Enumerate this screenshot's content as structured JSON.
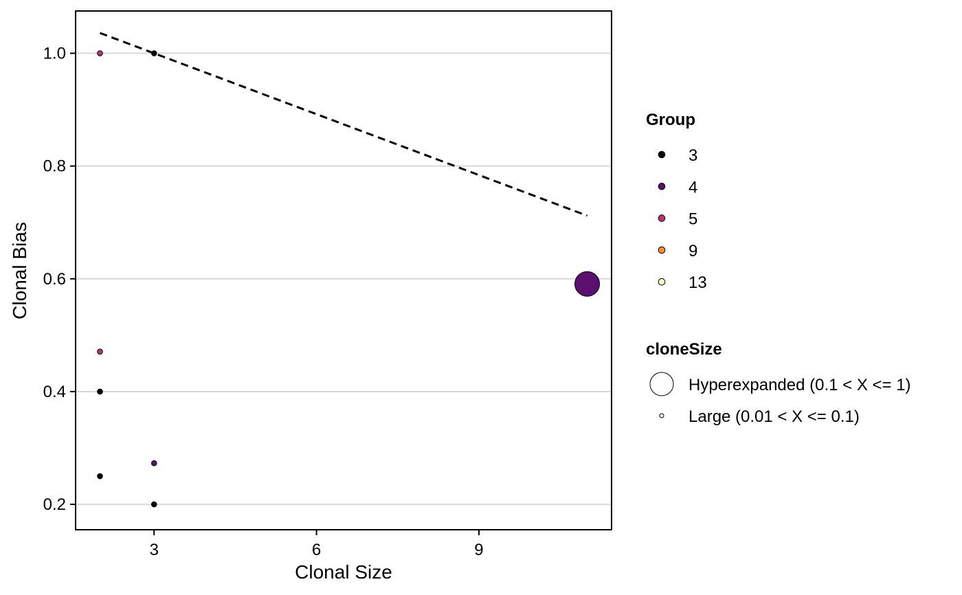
{
  "chart_data": {
    "type": "scatter",
    "title": "",
    "xlabel": "Clonal Size",
    "ylabel": "Clonal Bias",
    "xlim": [
      1.55,
      11.45
    ],
    "ylim": [
      0.155,
      1.075
    ],
    "x_ticks": [
      3,
      6,
      9
    ],
    "y_ticks": [
      0.2,
      0.4,
      0.6,
      0.8,
      1.0
    ],
    "y_tick_labels": [
      "0.2",
      "0.4",
      "0.6",
      "0.8",
      "1.0"
    ],
    "grid": "horizontal-major",
    "trend_line": {
      "style": "dashed",
      "x": [
        2,
        11
      ],
      "y": [
        1.036,
        0.712
      ]
    },
    "points": [
      {
        "x": 2,
        "y": 1.0,
        "group": "5",
        "cloneSize": "Large (0.01 < X <= 0.1)"
      },
      {
        "x": 3,
        "y": 1.0,
        "group": "3",
        "cloneSize": "Large (0.01 < X <= 0.1)"
      },
      {
        "x": 11,
        "y": 0.591,
        "group": "4",
        "cloneSize": "Hyperexpanded (0.1 < X <= 1)"
      },
      {
        "x": 2,
        "y": 0.471,
        "group": "5",
        "cloneSize": "Large (0.01 < X <= 0.1)"
      },
      {
        "x": 2,
        "y": 0.4,
        "group": "3",
        "cloneSize": "Large (0.01 < X <= 0.1)"
      },
      {
        "x": 3,
        "y": 0.273,
        "group": "4",
        "cloneSize": "Large (0.01 < X <= 0.1)"
      },
      {
        "x": 2,
        "y": 0.25,
        "group": "3",
        "cloneSize": "Large (0.01 < X <= 0.1)"
      },
      {
        "x": 3,
        "y": 0.2,
        "group": "3",
        "cloneSize": "Large (0.01 < X <= 0.1)"
      }
    ],
    "legend": {
      "placement": "right",
      "group": {
        "title": "Group",
        "items": [
          {
            "label": "3",
            "color": "#000004"
          },
          {
            "label": "4",
            "color": "#51127C"
          },
          {
            "label": "5",
            "color": "#B63679"
          },
          {
            "label": "9",
            "color": "#FB8861"
          },
          {
            "label": "13",
            "color": "#FCFDBF"
          }
        ]
      },
      "cloneSize": {
        "title": "cloneSize",
        "items": [
          {
            "label": "Hyperexpanded (0.1 < X <= 1)",
            "size": "large"
          },
          {
            "label": "Large (0.01 < X <= 0.1)",
            "size": "small"
          }
        ]
      }
    },
    "colors": {
      "group_3": "#000004",
      "group_4": "#5B0F6E",
      "group_5": "#B63679",
      "group_9": "#F98E2A",
      "group_13": "#FCFDBF",
      "grid": "#D9D9D9"
    }
  }
}
